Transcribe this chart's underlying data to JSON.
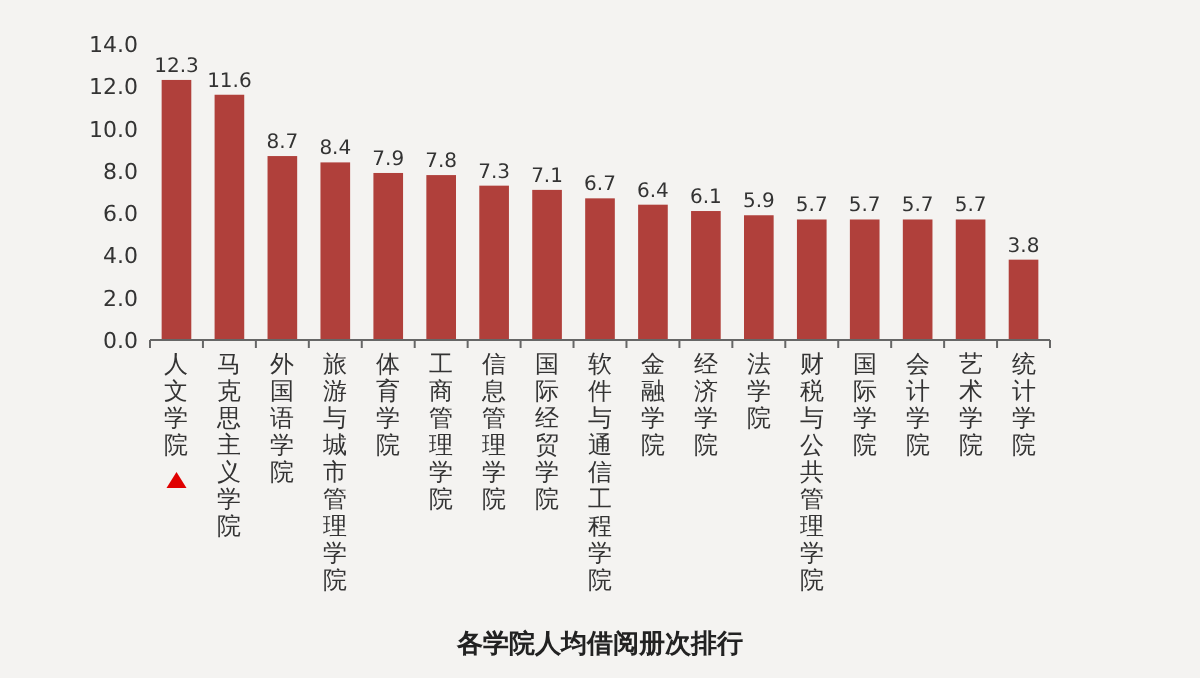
{
  "chart_data": {
    "type": "bar",
    "title": "各学院人均借阅册次排行",
    "categories": [
      "人文学院",
      "马克思主义学院",
      "外国语学院",
      "旅游与城市管理学院",
      "体育学院",
      "工商管理学院",
      "信息管理学院",
      "国际经贸学院",
      "软件与通信工程学院",
      "金融学院",
      "经济学院",
      "法学院",
      "财税与公共管理学院",
      "国际学院",
      "会计学院",
      "艺术学院",
      "统计学院"
    ],
    "values": [
      12.3,
      11.6,
      8.7,
      8.4,
      7.9,
      7.8,
      7.3,
      7.1,
      6.7,
      6.4,
      6.1,
      5.9,
      5.7,
      5.7,
      5.7,
      5.7,
      3.8
    ],
    "color": "#b0403b",
    "ylim": [
      0,
      14
    ],
    "yticks": [
      {
        "value": 0,
        "label": "0.0"
      },
      {
        "value": 2,
        "label": "2.0"
      },
      {
        "value": 4,
        "label": "4.0"
      },
      {
        "value": 6,
        "label": "6.0"
      },
      {
        "value": 8,
        "label": "8.0"
      },
      {
        "value": 10,
        "label": "10.0"
      },
      {
        "value": 12,
        "label": "12.0"
      },
      {
        "value": 14,
        "label": "14.0"
      }
    ],
    "data_labels": true,
    "grid": false
  }
}
